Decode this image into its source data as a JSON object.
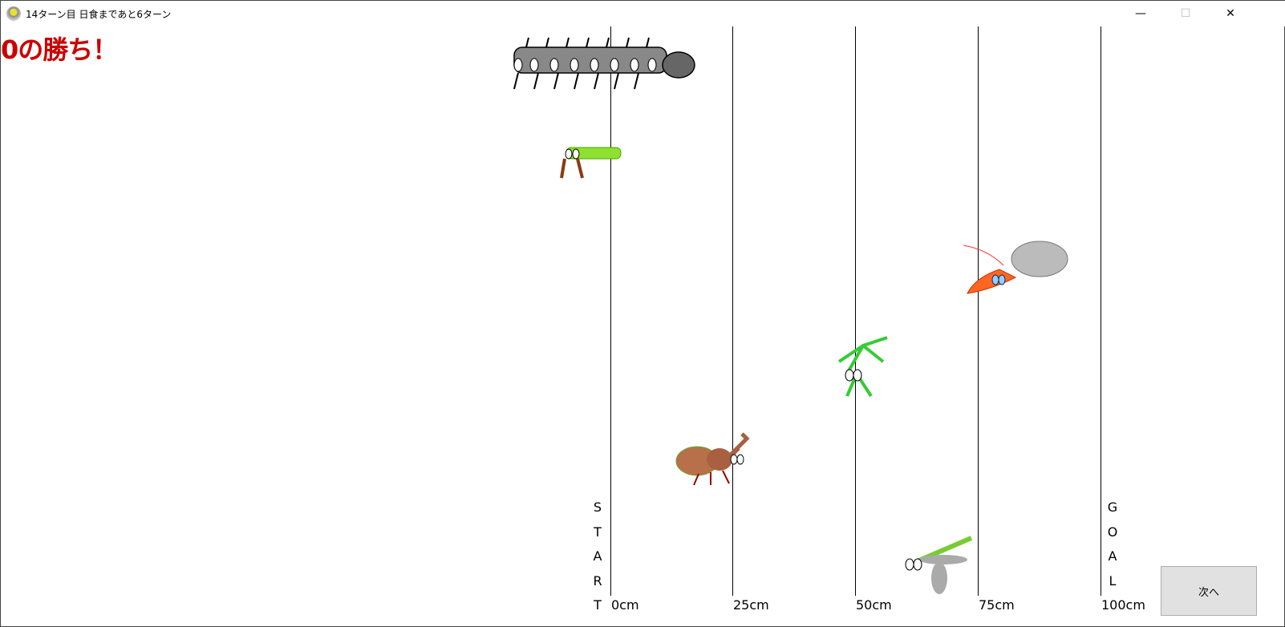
{
  "window": {
    "title": "14ターン目 日食まであと6ターン",
    "minimize": "—",
    "maximize": "☐",
    "close": "✕"
  },
  "result": "0の勝ち！",
  "track": {
    "start_letters": [
      "S",
      "T",
      "A",
      "R",
      "T"
    ],
    "goal_letters": [
      "G",
      "O",
      "A",
      "L"
    ],
    "marks": [
      "0cm",
      "25cm",
      "50cm",
      "75cm",
      "100cm"
    ]
  },
  "next_button": "次へ"
}
